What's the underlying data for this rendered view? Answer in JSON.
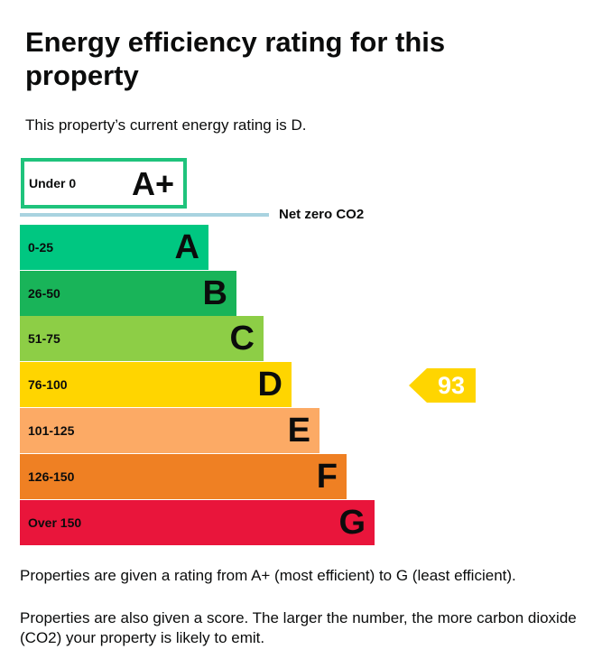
{
  "title": "Energy efficiency rating for this property",
  "intro": "This property’s current energy rating is D.",
  "aplus": {
    "range": "Under 0",
    "letter": "A+",
    "color": "#1fc37c"
  },
  "net_zero_label": "Net zero CO2",
  "bands": [
    {
      "range": "0-25",
      "letter": "A",
      "color": "#00c781"
    },
    {
      "range": "26-50",
      "letter": "B",
      "color": "#19b459"
    },
    {
      "range": "51-75",
      "letter": "C",
      "color": "#8dce46"
    },
    {
      "range": "76-100",
      "letter": "D",
      "color": "#ffd500"
    },
    {
      "range": "101-125",
      "letter": "E",
      "color": "#fcaa65"
    },
    {
      "range": "126-150",
      "letter": "F",
      "color": "#ef8023"
    },
    {
      "range": "Over 150",
      "letter": "G",
      "color": "#e9153b"
    }
  ],
  "current": {
    "score": "93",
    "band": "D",
    "color": "#ffd500"
  },
  "note1": "Properties are given a rating from A+ (most efficient) to G (least efficient).",
  "note2": "Properties are also given a score. The larger the number, the more carbon dioxide (CO2) your property is likely to emit."
}
